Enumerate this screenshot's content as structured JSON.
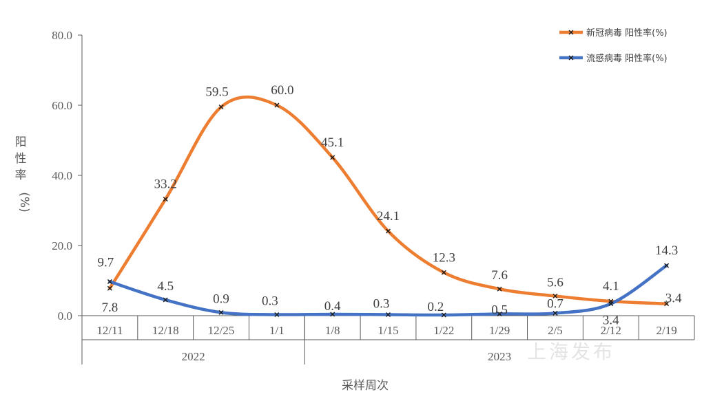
{
  "chart_data": {
    "type": "line",
    "categories": [
      "12/11",
      "12/18",
      "12/25",
      "1/1",
      "1/8",
      "1/15",
      "1/22",
      "1/29",
      "2/5",
      "2/12",
      "2/19"
    ],
    "year_groups": [
      {
        "label": "2022",
        "span": 4
      },
      {
        "label": "2023",
        "span": 7
      }
    ],
    "xlabel": "采样周次",
    "ylabel": "阳性率(%)",
    "ylim": [
      0,
      80
    ],
    "yticks": [
      "0.0",
      "20.0",
      "40.0",
      "60.0",
      "80.0"
    ],
    "series": [
      {
        "name": "新冠病毒 阳性率(%)",
        "color": "#ed7d31",
        "values": [
          7.8,
          33.2,
          59.5,
          60.0,
          45.1,
          24.1,
          12.3,
          7.6,
          5.6,
          4.1,
          3.4
        ],
        "labels": [
          "7.8",
          "33.2",
          "59.5",
          "60.0",
          "45.1",
          "24.1",
          "12.3",
          "7.6",
          "5.6",
          "4.1",
          "3.4"
        ]
      },
      {
        "name": "流感病毒 阳性率(%)",
        "color": "#4472c4",
        "values": [
          9.7,
          4.5,
          0.9,
          0.3,
          0.4,
          0.3,
          0.2,
          0.5,
          0.7,
          3.4,
          14.3
        ],
        "labels": [
          "9.7",
          "4.5",
          "0.9",
          "0.3",
          "0.4",
          "0.3",
          "0.2",
          "0.5",
          "0.7",
          "3.4",
          "14.3"
        ]
      }
    ],
    "legend_position": "top-right",
    "grid": false
  },
  "watermark": "上海发布"
}
